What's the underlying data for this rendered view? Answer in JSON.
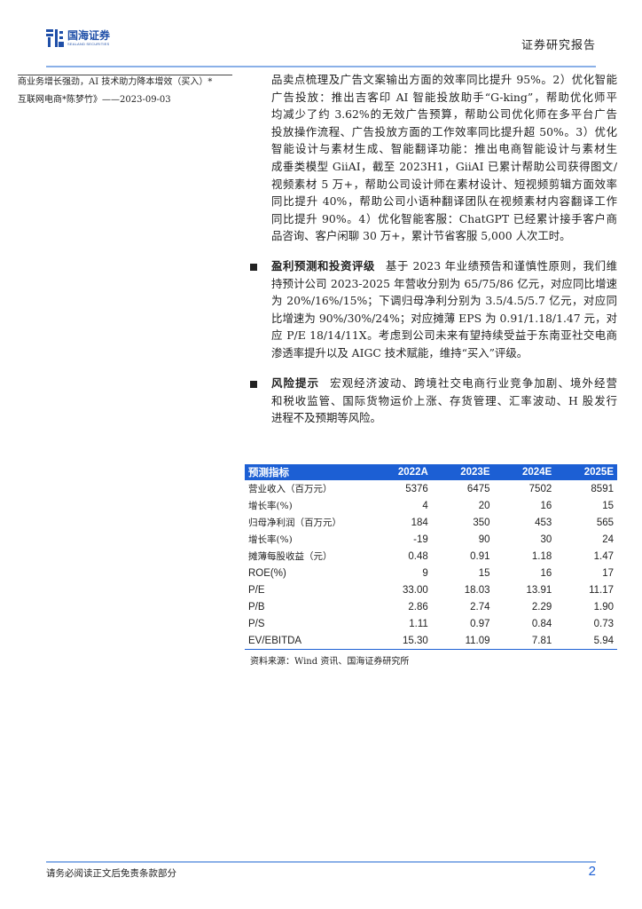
{
  "header": {
    "logo_cn": "国海证券",
    "logo_en": "SEALAND SECURITIES",
    "report_type": "证券研究报告"
  },
  "sidebar": {
    "line1": "商业务增长强劲，AI 技术助力降本增效（买入）*",
    "line2": "互联网电商*陈梦竹》——2023-09-03"
  },
  "intro": {
    "lines": [
      "品卖点梳理及广告文案输出方面的效率同比提升 95%。2）优化智能",
      "广告投放：推出吉客印 AI 智能投放助手“G-king”，帮助优化师平",
      "均减少了约 3.62%的无效广告预算，帮助公司优化师在多平台广告",
      "投放操作流程、广告投放方面的工作效率同比提升超 50%。3）优化",
      "智能设计与素材生成、智能翻译功能：推出电商智能设计与素材生",
      "成垂类模型 GiiAI，截至 2023H1，GiiAI 已累计帮助公司获得图文/",
      "视频素材 5 万+，帮助公司设计师在素材设计、短视频剪辑方面效率",
      "同比提升 40%，帮助公司小语种翻译团队在视频素材内容翻译工作",
      "同比提升 90%。4）优化智能客服：ChatGPT 已经累计接手客户商",
      "品咨询、客户闲聊 30 万+，累计节省客服 5,000 人次工时。"
    ]
  },
  "forecast": {
    "title": "盈利预测和投资评级",
    "lines": [
      "基于 2023 年业绩预告和谨慎性原则，我们维",
      "持预计公司 2023-2025 年营收分别为 65/75/86 亿元，对应同比增速",
      "为 20%/16%/15%；下调归母净利分别为 3.5/4.5/5.7 亿元，对应同",
      "比增速为 90%/30%/24%；对应摊薄 EPS 为 0.91/1.18/1.47 元，对",
      "应 P/E 18/14/11X。考虑到公司未来有望持续受益于东南亚社交电商",
      "渗透率提升以及 AIGC 技术赋能，维持“买入”评级。"
    ]
  },
  "risk": {
    "title": "风险提示",
    "lines": [
      "宏观经济波动、跨境社交电商行业竞争加剧、境外经营",
      "和税收监管、国际货物运价上涨、存货管理、汇率波动、H 股发行",
      "进程不及预期等风险。"
    ]
  },
  "table": {
    "headers": [
      "预测指标",
      "2022A",
      "2023E",
      "2024E",
      "2025E"
    ],
    "rows": [
      [
        "营业收入（百万元）",
        "5376",
        "6475",
        "7502",
        "8591"
      ],
      [
        "增长率(%)",
        "4",
        "20",
        "16",
        "15"
      ],
      [
        "归母净利润（百万元）",
        "184",
        "350",
        "453",
        "565"
      ],
      [
        "增长率(%)",
        "-19",
        "90",
        "30",
        "24"
      ],
      [
        "摊薄每股收益（元）",
        "0.48",
        "0.91",
        "1.18",
        "1.47"
      ],
      [
        "ROE(%)",
        "9",
        "15",
        "16",
        "17"
      ],
      [
        "P/E",
        "33.00",
        "18.03",
        "13.91",
        "11.17"
      ],
      [
        "P/B",
        "2.86",
        "2.74",
        "2.29",
        "1.90"
      ],
      [
        "P/S",
        "1.11",
        "0.97",
        "0.84",
        "0.73"
      ],
      [
        "EV/EBITDA",
        "15.30",
        "11.09",
        "7.81",
        "5.94"
      ]
    ],
    "source": "资料来源：Wind 资讯、国海证券研究所"
  },
  "footer": {
    "disclaimer": "请务必阅读正文后免责条款部分",
    "page": "2"
  },
  "colors": {
    "brand": "#1f4fa8",
    "table_header": "#1c5fd4",
    "rule": "#8ab0e8"
  }
}
